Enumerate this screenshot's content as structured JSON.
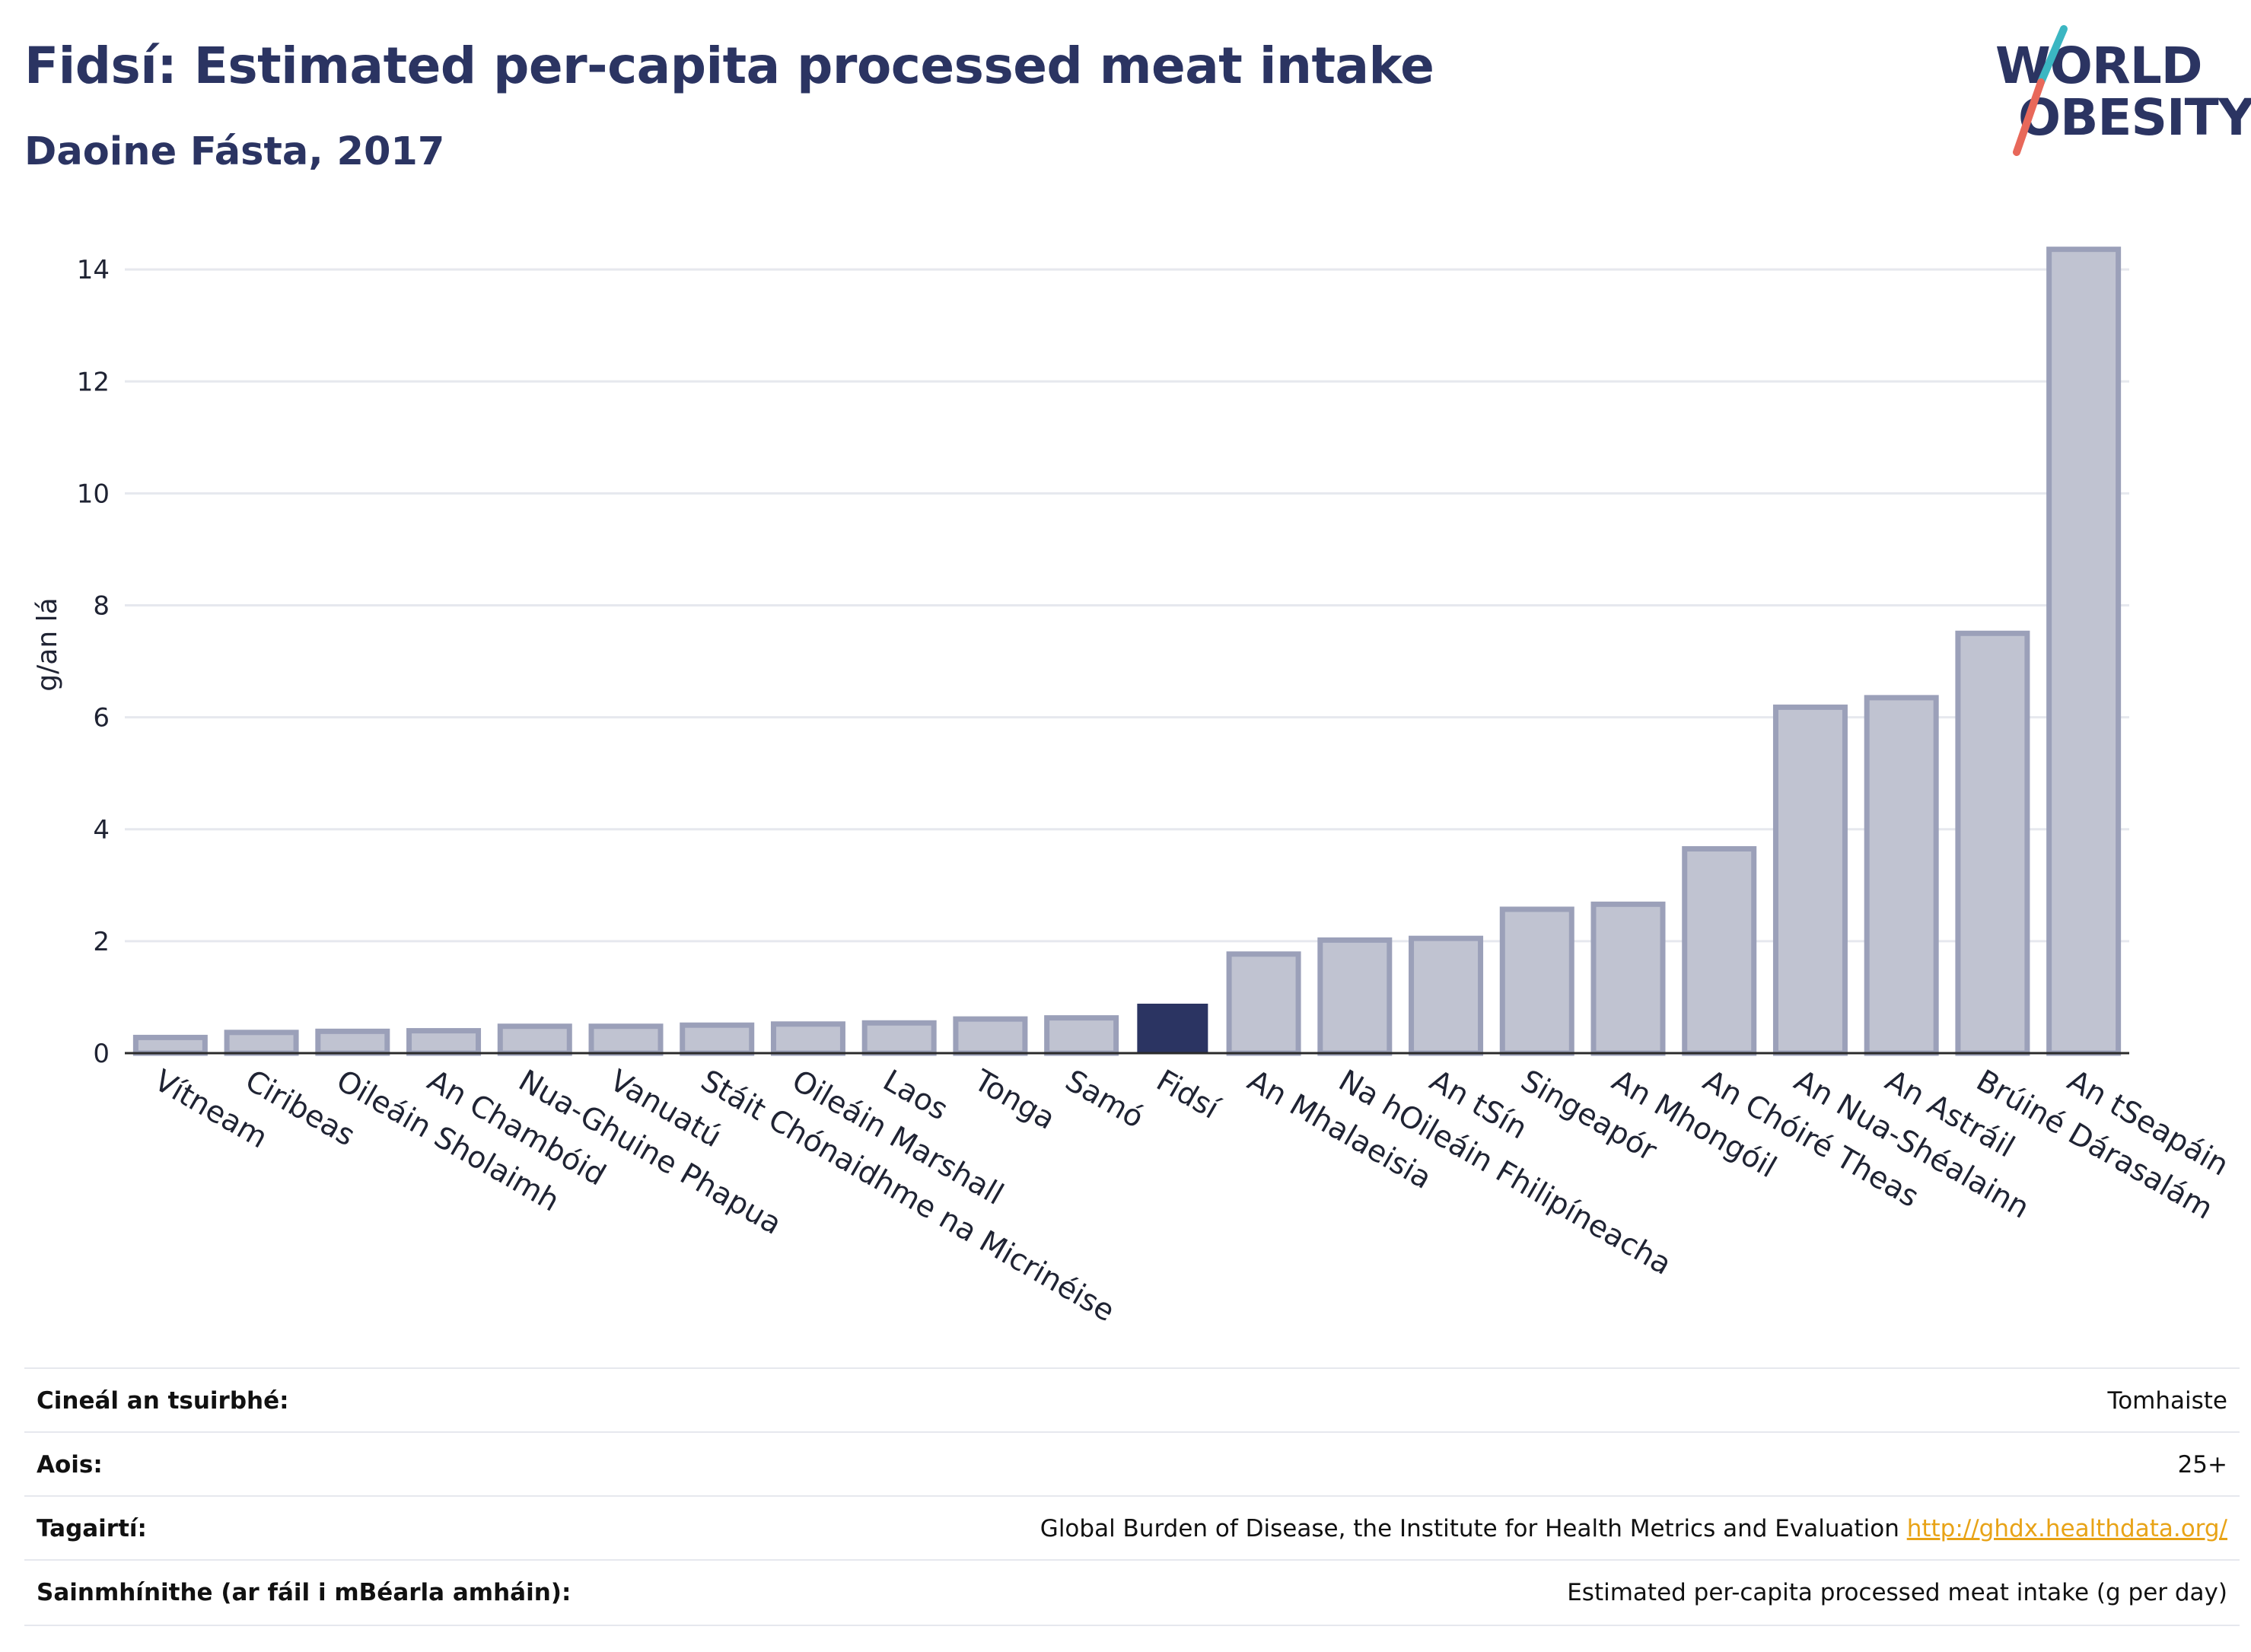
{
  "header": {
    "title": "Fidsí: Estimated per-capita processed meat intake",
    "subtitle": "Daoine Fásta, 2017"
  },
  "logo": {
    "line1": "WORLD",
    "line2": "OBESITY",
    "brand_color": "#2b3462",
    "accent_teal": "#3bb6c2",
    "accent_red": "#e8685a"
  },
  "chart_data": {
    "type": "bar",
    "ylabel": "g/an lá",
    "xlabel": "",
    "ylim": [
      0,
      14.6
    ],
    "yticks": [
      0,
      2,
      4,
      6,
      8,
      10,
      12,
      14
    ],
    "grid": true,
    "highlight": "Fidsí",
    "highlight_color": "#2b3462",
    "bar_color": "#c0c3d1",
    "bar_edge_color": "#9ba0b9",
    "categories": [
      "Vítneam",
      "Ciribeas",
      "Oileáin Sholaimh",
      "An Chambóid",
      "Nua-Ghuine Phapua",
      "Vanuatú",
      "Stáit Chónaidhme na Micrinéise",
      "Oileáin Marshall",
      "Laos",
      "Tonga",
      "Samó",
      "Fidsí",
      "An Mhalaeisia",
      "Na hOileáin Fhilipíneacha",
      "An tSín",
      "Singeapór",
      "An Mhongóil",
      "An Chóiré Theas",
      "An Nua-Shéalainn",
      "An Astráil",
      "Brúiné Dárasalám",
      "An tSeapáin"
    ],
    "values": [
      0.28,
      0.37,
      0.39,
      0.4,
      0.48,
      0.48,
      0.5,
      0.52,
      0.54,
      0.61,
      0.63,
      0.87,
      1.77,
      2.02,
      2.05,
      2.57,
      2.66,
      3.65,
      6.18,
      6.35,
      7.5,
      14.36
    ]
  },
  "metadata_table": [
    {
      "label": "Cineál an tsuirbhé:",
      "value": "Tomhaiste"
    },
    {
      "label": "Aois:",
      "value": "25+"
    },
    {
      "label": "Tagairtí:",
      "value": "Global Burden of Disease, the Institute for Health Metrics and Evaluation",
      "link": "http://ghdx.healthdata.org/"
    },
    {
      "label": "Sainmhínithe (ar fáil i mBéarla amháin):",
      "value": "Estimated per-capita processed meat intake (g per day)"
    }
  ]
}
